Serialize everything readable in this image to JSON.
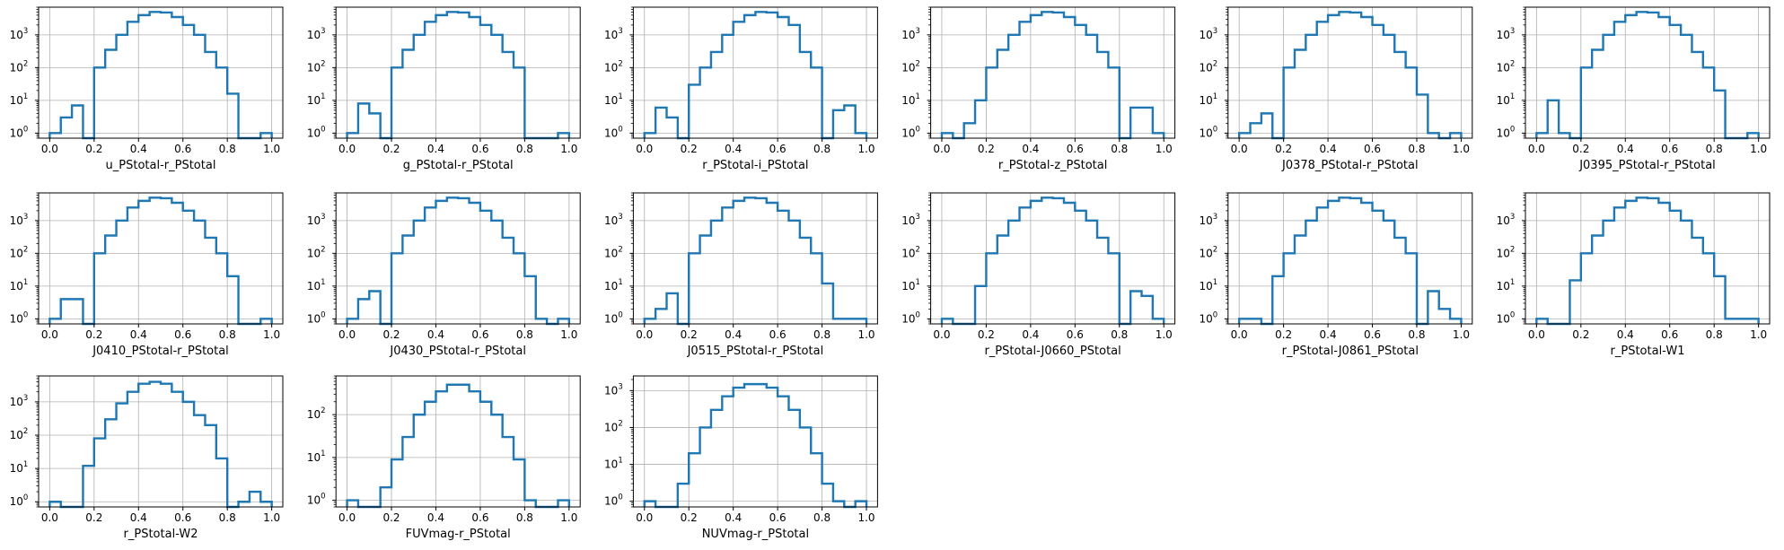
{
  "figure": {
    "style": {
      "line_color": "#1f77b4",
      "grid_color": "#b0b0b0",
      "axis_color": "#000000",
      "background": "#ffffff"
    }
  },
  "chart_data": [
    {
      "type": "histogram",
      "xlabel": "u_PStotal-r_PStotal",
      "yscale": "log",
      "xlim": [
        -0.05,
        1.05
      ],
      "ylim": [
        0.7,
        7000
      ],
      "grid": true,
      "x_ticks": [
        "0.0",
        "0.2",
        "0.4",
        "0.6",
        "0.8",
        "1.0"
      ],
      "y_ticks": [
        "10^0",
        "10^1",
        "10^2",
        "10^3"
      ],
      "bin_edges": [
        0,
        0.05,
        0.1,
        0.15,
        0.2,
        0.25,
        0.3,
        0.35,
        0.4,
        0.45,
        0.5,
        0.55,
        0.6,
        0.65,
        0.7,
        0.75,
        0.8,
        0.85,
        0.9,
        0.95,
        1.0
      ],
      "counts": [
        1,
        3,
        7,
        0,
        100,
        350,
        1000,
        2500,
        4000,
        5000,
        4800,
        3500,
        2000,
        1000,
        300,
        100,
        16,
        0,
        0,
        1
      ]
    },
    {
      "type": "histogram",
      "xlabel": "g_PStotal-r_PStotal",
      "yscale": "log",
      "xlim": [
        -0.05,
        1.05
      ],
      "ylim": [
        0.7,
        7000
      ],
      "grid": true,
      "x_ticks": [
        "0.0",
        "0.2",
        "0.4",
        "0.6",
        "0.8",
        "1.0"
      ],
      "y_ticks": [
        "10^0",
        "10^1",
        "10^2",
        "10^3"
      ],
      "bin_edges": [
        0,
        0.05,
        0.1,
        0.15,
        0.2,
        0.25,
        0.3,
        0.35,
        0.4,
        0.45,
        0.5,
        0.55,
        0.6,
        0.65,
        0.7,
        0.75,
        0.8,
        0.85,
        0.9,
        0.95,
        1.0
      ],
      "counts": [
        1,
        8,
        4,
        0,
        100,
        350,
        1000,
        2500,
        4000,
        5000,
        4800,
        3500,
        2000,
        1000,
        300,
        100,
        0,
        0,
        0,
        1
      ]
    },
    {
      "type": "histogram",
      "xlabel": "r_PStotal-i_PStotal",
      "yscale": "log",
      "xlim": [
        -0.05,
        1.05
      ],
      "ylim": [
        0.7,
        7000
      ],
      "grid": true,
      "x_ticks": [
        "0.0",
        "0.2",
        "0.4",
        "0.6",
        "0.8",
        "1.0"
      ],
      "y_ticks": [
        "10^0",
        "10^1",
        "10^2",
        "10^3"
      ],
      "bin_edges": [
        0,
        0.05,
        0.1,
        0.15,
        0.2,
        0.25,
        0.3,
        0.35,
        0.4,
        0.45,
        0.5,
        0.55,
        0.6,
        0.65,
        0.7,
        0.75,
        0.8,
        0.85,
        0.9,
        0.95,
        1.0
      ],
      "counts": [
        1,
        6,
        3,
        0,
        30,
        100,
        300,
        1000,
        2500,
        4000,
        5000,
        4800,
        3500,
        2000,
        300,
        100,
        0,
        5,
        7,
        1
      ]
    },
    {
      "type": "histogram",
      "xlabel": "r_PStotal-z_PStotal",
      "yscale": "log",
      "xlim": [
        -0.05,
        1.05
      ],
      "ylim": [
        0.7,
        7000
      ],
      "grid": true,
      "x_ticks": [
        "0.0",
        "0.2",
        "0.4",
        "0.6",
        "0.8",
        "1.0"
      ],
      "y_ticks": [
        "10^0",
        "10^1",
        "10^2",
        "10^3"
      ],
      "bin_edges": [
        0,
        0.05,
        0.1,
        0.15,
        0.2,
        0.25,
        0.3,
        0.35,
        0.4,
        0.45,
        0.5,
        0.55,
        0.6,
        0.65,
        0.7,
        0.75,
        0.8,
        0.85,
        0.9,
        0.95,
        1.0
      ],
      "counts": [
        1,
        0,
        2,
        10,
        100,
        350,
        1000,
        2500,
        4000,
        5000,
        4800,
        3500,
        2000,
        1000,
        300,
        100,
        0,
        6,
        6,
        1
      ]
    },
    {
      "type": "histogram",
      "xlabel": "J0378_PStotal-r_PStotal",
      "yscale": "log",
      "xlim": [
        -0.05,
        1.05
      ],
      "ylim": [
        0.7,
        7000
      ],
      "grid": true,
      "x_ticks": [
        "0.0",
        "0.2",
        "0.4",
        "0.6",
        "0.8",
        "1.0"
      ],
      "y_ticks": [
        "10^0",
        "10^1",
        "10^2",
        "10^3"
      ],
      "bin_edges": [
        0,
        0.05,
        0.1,
        0.15,
        0.2,
        0.25,
        0.3,
        0.35,
        0.4,
        0.45,
        0.5,
        0.55,
        0.6,
        0.65,
        0.7,
        0.75,
        0.8,
        0.85,
        0.9,
        0.95,
        1.0
      ],
      "counts": [
        1,
        2,
        4,
        0,
        100,
        350,
        1000,
        2500,
        4000,
        5000,
        4800,
        3500,
        2000,
        1000,
        300,
        100,
        15,
        1,
        0,
        1
      ]
    },
    {
      "type": "histogram",
      "xlabel": "J0395_PStotal-r_PStotal",
      "yscale": "log",
      "xlim": [
        -0.05,
        1.05
      ],
      "ylim": [
        0.7,
        7000
      ],
      "grid": true,
      "x_ticks": [
        "0.0",
        "0.2",
        "0.4",
        "0.6",
        "0.8",
        "1.0"
      ],
      "y_ticks": [
        "10^0",
        "10^1",
        "10^2",
        "10^3"
      ],
      "bin_edges": [
        0,
        0.05,
        0.1,
        0.15,
        0.2,
        0.25,
        0.3,
        0.35,
        0.4,
        0.45,
        0.5,
        0.55,
        0.6,
        0.65,
        0.7,
        0.75,
        0.8,
        0.85,
        0.9,
        0.95,
        1.0
      ],
      "counts": [
        1,
        10,
        1,
        0,
        100,
        350,
        1000,
        2500,
        4000,
        5000,
        4800,
        3500,
        2000,
        1000,
        300,
        100,
        20,
        0,
        0,
        1
      ]
    },
    {
      "type": "histogram",
      "xlabel": "J0410_PStotal-r_PStotal",
      "yscale": "log",
      "xlim": [
        -0.05,
        1.05
      ],
      "ylim": [
        0.7,
        7000
      ],
      "grid": true,
      "x_ticks": [
        "0.0",
        "0.2",
        "0.4",
        "0.6",
        "0.8",
        "1.0"
      ],
      "y_ticks": [
        "10^0",
        "10^1",
        "10^2",
        "10^3"
      ],
      "bin_edges": [
        0,
        0.05,
        0.1,
        0.15,
        0.2,
        0.25,
        0.3,
        0.35,
        0.4,
        0.45,
        0.5,
        0.55,
        0.6,
        0.65,
        0.7,
        0.75,
        0.8,
        0.85,
        0.9,
        0.95,
        1.0
      ],
      "counts": [
        1,
        4,
        4,
        0,
        100,
        350,
        1000,
        2500,
        4000,
        5000,
        4800,
        3500,
        2000,
        1000,
        300,
        100,
        20,
        0,
        0,
        1
      ]
    },
    {
      "type": "histogram",
      "xlabel": "J0430_PStotal-r_PStotal",
      "yscale": "log",
      "xlim": [
        -0.05,
        1.05
      ],
      "ylim": [
        0.7,
        7000
      ],
      "grid": true,
      "x_ticks": [
        "0.0",
        "0.2",
        "0.4",
        "0.6",
        "0.8",
        "1.0"
      ],
      "y_ticks": [
        "10^0",
        "10^1",
        "10^2",
        "10^3"
      ],
      "bin_edges": [
        0,
        0.05,
        0.1,
        0.15,
        0.2,
        0.25,
        0.3,
        0.35,
        0.4,
        0.45,
        0.5,
        0.55,
        0.6,
        0.65,
        0.7,
        0.75,
        0.8,
        0.85,
        0.9,
        0.95,
        1.0
      ],
      "counts": [
        1,
        4,
        7,
        0,
        100,
        350,
        1000,
        2500,
        4000,
        5000,
        4800,
        3500,
        2000,
        1000,
        300,
        100,
        20,
        1,
        0,
        1
      ]
    },
    {
      "type": "histogram",
      "xlabel": "J0515_PStotal-r_PStotal",
      "yscale": "log",
      "xlim": [
        -0.05,
        1.05
      ],
      "ylim": [
        0.7,
        7000
      ],
      "grid": true,
      "x_ticks": [
        "0.0",
        "0.2",
        "0.4",
        "0.6",
        "0.8",
        "1.0"
      ],
      "y_ticks": [
        "10^0",
        "10^1",
        "10^2",
        "10^3"
      ],
      "bin_edges": [
        0,
        0.05,
        0.1,
        0.15,
        0.2,
        0.25,
        0.3,
        0.35,
        0.4,
        0.45,
        0.5,
        0.55,
        0.6,
        0.65,
        0.7,
        0.75,
        0.8,
        0.85,
        0.9,
        0.95,
        1.0
      ],
      "counts": [
        1,
        2,
        6,
        0,
        100,
        350,
        1000,
        2500,
        4000,
        5000,
        4800,
        3500,
        2000,
        1000,
        300,
        100,
        12,
        1,
        1,
        1
      ]
    },
    {
      "type": "histogram",
      "xlabel": "r_PStotal-J0660_PStotal",
      "yscale": "log",
      "xlim": [
        -0.05,
        1.05
      ],
      "ylim": [
        0.7,
        7000
      ],
      "grid": true,
      "x_ticks": [
        "0.0",
        "0.2",
        "0.4",
        "0.6",
        "0.8",
        "1.0"
      ],
      "y_ticks": [
        "10^0",
        "10^1",
        "10^2",
        "10^3"
      ],
      "bin_edges": [
        0,
        0.05,
        0.1,
        0.15,
        0.2,
        0.25,
        0.3,
        0.35,
        0.4,
        0.45,
        0.5,
        0.55,
        0.6,
        0.65,
        0.7,
        0.75,
        0.8,
        0.85,
        0.9,
        0.95,
        1.0
      ],
      "counts": [
        1,
        0,
        0,
        10,
        100,
        350,
        1000,
        2500,
        4000,
        5000,
        4800,
        3500,
        2000,
        1000,
        300,
        100,
        0,
        7,
        5,
        1
      ]
    },
    {
      "type": "histogram",
      "xlabel": "r_PStotal-J0861_PStotal",
      "yscale": "log",
      "xlim": [
        -0.05,
        1.05
      ],
      "ylim": [
        0.7,
        7000
      ],
      "grid": true,
      "x_ticks": [
        "0.0",
        "0.2",
        "0.4",
        "0.6",
        "0.8",
        "1.0"
      ],
      "y_ticks": [
        "10^0",
        "10^1",
        "10^2",
        "10^3"
      ],
      "bin_edges": [
        0,
        0.05,
        0.1,
        0.15,
        0.2,
        0.25,
        0.3,
        0.35,
        0.4,
        0.45,
        0.5,
        0.55,
        0.6,
        0.65,
        0.7,
        0.75,
        0.8,
        0.85,
        0.9,
        0.95,
        1.0
      ],
      "counts": [
        1,
        1,
        0,
        20,
        100,
        350,
        1000,
        2500,
        4000,
        5000,
        4800,
        3500,
        2000,
        1000,
        300,
        100,
        0,
        7,
        2,
        1
      ]
    },
    {
      "type": "histogram",
      "xlabel": "r_PStotal-W1",
      "yscale": "log",
      "xlim": [
        -0.05,
        1.05
      ],
      "ylim": [
        0.7,
        7000
      ],
      "grid": true,
      "x_ticks": [
        "0.0",
        "0.2",
        "0.4",
        "0.6",
        "0.8",
        "1.0"
      ],
      "y_ticks": [
        "10^0",
        "10^1",
        "10^2",
        "10^3"
      ],
      "bin_edges": [
        0,
        0.05,
        0.1,
        0.15,
        0.2,
        0.25,
        0.3,
        0.35,
        0.4,
        0.45,
        0.5,
        0.55,
        0.6,
        0.65,
        0.7,
        0.75,
        0.8,
        0.85,
        0.9,
        0.95,
        1.0
      ],
      "counts": [
        1,
        0,
        0,
        15,
        100,
        350,
        1000,
        2500,
        4000,
        5000,
        4800,
        3500,
        2000,
        1000,
        300,
        100,
        20,
        1,
        1,
        1
      ]
    },
    {
      "type": "histogram",
      "xlabel": "r_PStotal-W2",
      "yscale": "log",
      "xlim": [
        -0.05,
        1.05
      ],
      "ylim": [
        0.7,
        6000
      ],
      "grid": true,
      "x_ticks": [
        "0.0",
        "0.2",
        "0.4",
        "0.6",
        "0.8",
        "1.0"
      ],
      "y_ticks": [
        "10^0",
        "10^1",
        "10^2",
        "10^3"
      ],
      "bin_edges": [
        0,
        0.05,
        0.1,
        0.15,
        0.2,
        0.25,
        0.3,
        0.35,
        0.4,
        0.45,
        0.5,
        0.55,
        0.6,
        0.65,
        0.7,
        0.75,
        0.8,
        0.85,
        0.9,
        0.95,
        1.0
      ],
      "counts": [
        1,
        0,
        0,
        12,
        80,
        300,
        900,
        2000,
        3500,
        4000,
        3500,
        2000,
        1000,
        400,
        200,
        20,
        0,
        1,
        2,
        1
      ]
    },
    {
      "type": "histogram",
      "xlabel": "FUVmag-r_PStotal",
      "yscale": "log",
      "xlim": [
        -0.05,
        1.05
      ],
      "ylim": [
        0.7,
        800
      ],
      "grid": true,
      "x_ticks": [
        "0.0",
        "0.2",
        "0.4",
        "0.6",
        "0.8",
        "1.0"
      ],
      "y_ticks": [
        "10^0",
        "10^1",
        "10^2"
      ],
      "bin_edges": [
        0,
        0.05,
        0.1,
        0.15,
        0.2,
        0.25,
        0.3,
        0.35,
        0.4,
        0.45,
        0.5,
        0.55,
        0.6,
        0.65,
        0.7,
        0.75,
        0.8,
        0.85,
        0.9,
        0.95,
        1.0
      ],
      "counts": [
        1,
        0,
        0,
        2,
        9,
        30,
        100,
        200,
        350,
        500,
        500,
        350,
        200,
        100,
        30,
        9,
        1,
        0,
        0,
        1
      ]
    },
    {
      "type": "histogram",
      "xlabel": "NUVmag-r_PStotal",
      "yscale": "log",
      "xlim": [
        -0.05,
        1.05
      ],
      "ylim": [
        0.7,
        2500
      ],
      "grid": true,
      "x_ticks": [
        "0.0",
        "0.2",
        "0.4",
        "0.6",
        "0.8",
        "1.0"
      ],
      "y_ticks": [
        "10^0",
        "10^1",
        "10^2",
        "10^3"
      ],
      "bin_edges": [
        0,
        0.05,
        0.1,
        0.15,
        0.2,
        0.25,
        0.3,
        0.35,
        0.4,
        0.45,
        0.5,
        0.55,
        0.6,
        0.65,
        0.7,
        0.75,
        0.8,
        0.85,
        0.9,
        0.95,
        1.0
      ],
      "counts": [
        1,
        0,
        0,
        3,
        20,
        100,
        300,
        700,
        1200,
        1500,
        1500,
        1200,
        700,
        300,
        100,
        20,
        3,
        1,
        0,
        1
      ]
    }
  ]
}
